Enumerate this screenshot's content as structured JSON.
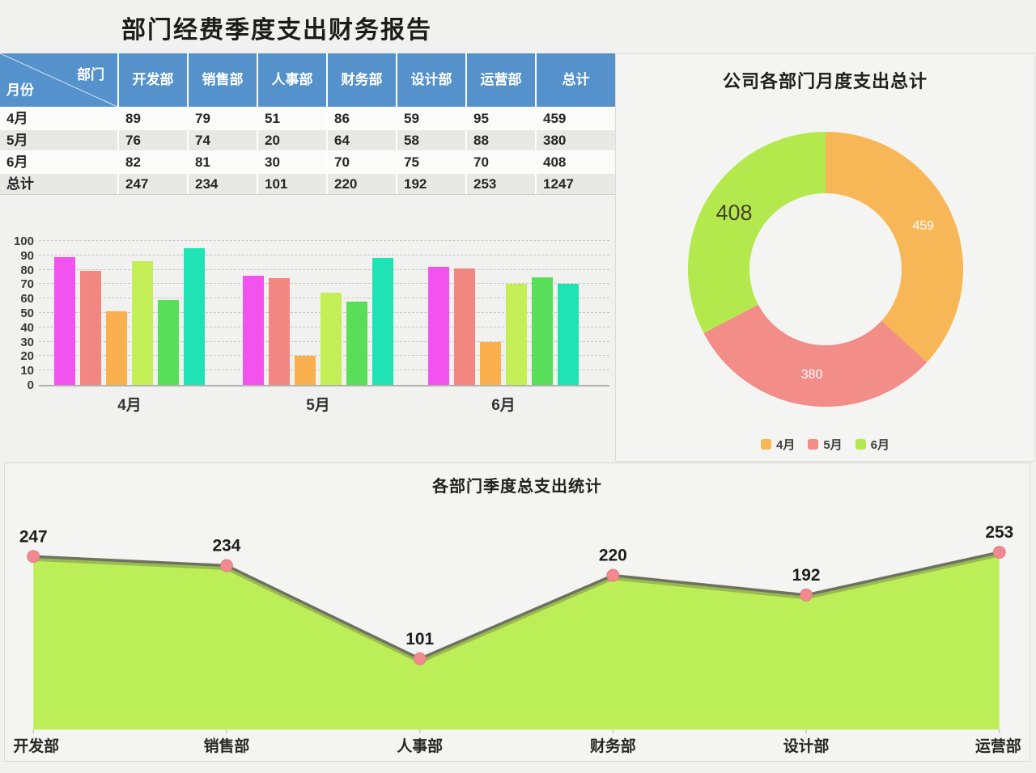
{
  "page": {
    "title": "部门经费季度支出财务报告"
  },
  "table": {
    "corner": {
      "top_right": "部门",
      "bottom_left": "月份"
    },
    "columns": [
      "开发部",
      "销售部",
      "人事部",
      "财务部",
      "设计部",
      "运营部",
      "总计"
    ],
    "rows": [
      {
        "label": "4月",
        "values": [
          "89",
          "79",
          "51",
          "86",
          "59",
          "95",
          "459"
        ]
      },
      {
        "label": "5月",
        "values": [
          "76",
          "74",
          "20",
          "64",
          "58",
          "88",
          "380"
        ]
      },
      {
        "label": "6月",
        "values": [
          "82",
          "81",
          "30",
          "70",
          "75",
          "70",
          "408"
        ]
      },
      {
        "label": "总计",
        "values": [
          "247",
          "234",
          "101",
          "220",
          "192",
          "253",
          "1247"
        ]
      }
    ],
    "header_color": "#5592cb"
  },
  "chart_data": [
    {
      "type": "bar",
      "title": "",
      "categories": [
        "4月",
        "5月",
        "6月"
      ],
      "series": [
        {
          "name": "开发部",
          "color": "#f253ee",
          "values": [
            89,
            76,
            82
          ]
        },
        {
          "name": "销售部",
          "color": "#f28681",
          "values": [
            79,
            74,
            81
          ]
        },
        {
          "name": "人事部",
          "color": "#fab04e",
          "values": [
            51,
            20,
            30
          ]
        },
        {
          "name": "财务部",
          "color": "#c4ee55",
          "values": [
            86,
            64,
            70
          ]
        },
        {
          "name": "设计部",
          "color": "#59de59",
          "values": [
            59,
            58,
            75
          ]
        },
        {
          "name": "运营部",
          "color": "#1fe3b4",
          "values": [
            95,
            88,
            70
          ]
        }
      ],
      "ylim": [
        0,
        100
      ],
      "ytick_step": 10,
      "grid": "horizontal-dashed",
      "legend_position": "bottom"
    },
    {
      "type": "pie",
      "donut": true,
      "title": "公司各部门月度支出总计",
      "slices": [
        {
          "label": "4月",
          "value": 459,
          "color": "#f8b757",
          "label_color": "#ffffff",
          "label_size": 16
        },
        {
          "label": "5月",
          "value": 380,
          "color": "#f28d87",
          "label_color": "#ffffff",
          "label_size": 16
        },
        {
          "label": "6月",
          "value": 408,
          "color": "#b4e94e",
          "label_color": "#45452d",
          "label_size": 27
        }
      ],
      "legend_position": "bottom"
    },
    {
      "type": "area",
      "title": "各部门季度总支出统计",
      "categories": [
        "开发部",
        "销售部",
        "人事部",
        "财务部",
        "设计部",
        "运营部"
      ],
      "values": [
        247,
        234,
        101,
        220,
        192,
        253
      ],
      "ylim": [
        0,
        380
      ],
      "fill_color": "#bcee57",
      "line_color": "#6e7160",
      "marker_color": "#f18a8f",
      "label_color": "#1d1d1d"
    }
  ]
}
